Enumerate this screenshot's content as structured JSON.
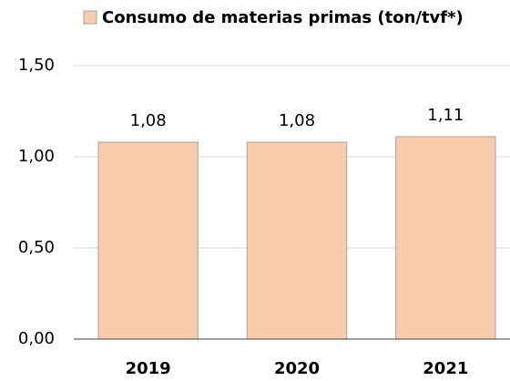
{
  "chart_data": {
    "type": "bar",
    "legend": "Consumo de materias primas (ton/tvf*)",
    "categories": [
      "2019",
      "2020",
      "2021"
    ],
    "values": [
      1.08,
      1.08,
      1.11
    ],
    "value_labels": [
      "1,08",
      "1,08",
      "1,11"
    ],
    "color": "#f8cbad",
    "ylim": [
      0,
      1.5
    ],
    "yticks": [
      {
        "value": 0,
        "label": "0,00"
      },
      {
        "value": 0.5,
        "label": "0,50"
      },
      {
        "value": 1,
        "label": "1,00"
      },
      {
        "value": 1.5,
        "label": "1,50"
      }
    ],
    "grid": true
  }
}
